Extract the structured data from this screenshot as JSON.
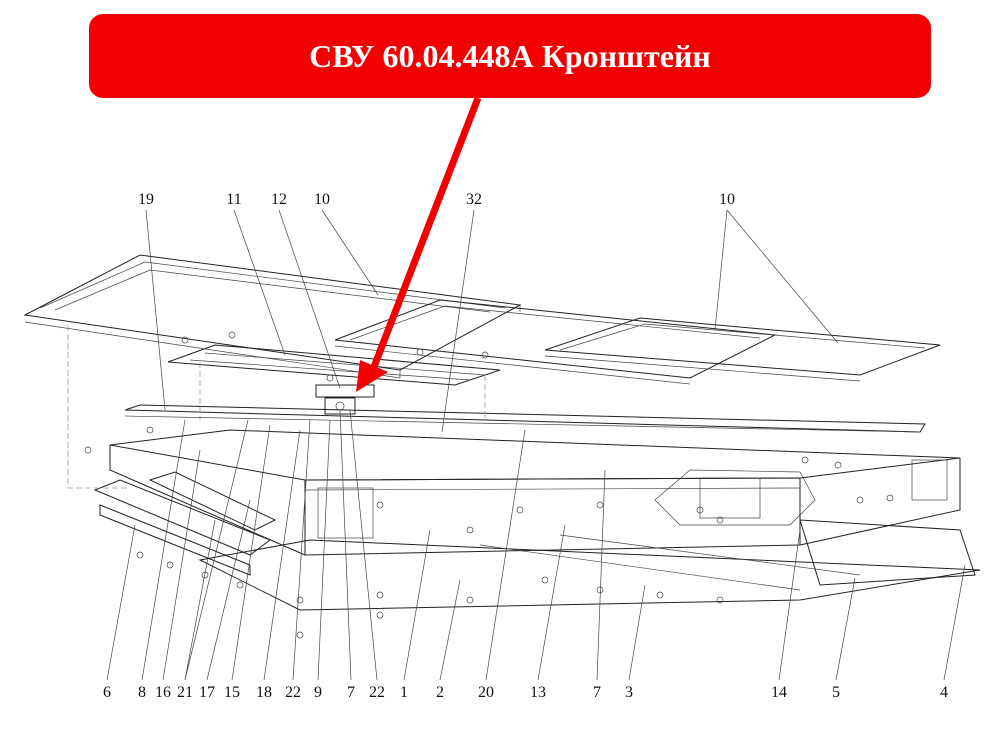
{
  "banner": {
    "title": "СВУ 60.04.448А Кронштейн",
    "color": "#f20000"
  },
  "callouts": {
    "top": [
      "19",
      "11",
      "12",
      "10",
      "32",
      "10"
    ],
    "bottom": [
      "6",
      "8",
      "16",
      "21",
      "17",
      "15",
      "18",
      "22",
      "9",
      "7",
      "22",
      "1",
      "2",
      "20",
      "13",
      "7",
      "3",
      "14",
      "5",
      "4"
    ]
  },
  "arrow_color": "#f20000"
}
